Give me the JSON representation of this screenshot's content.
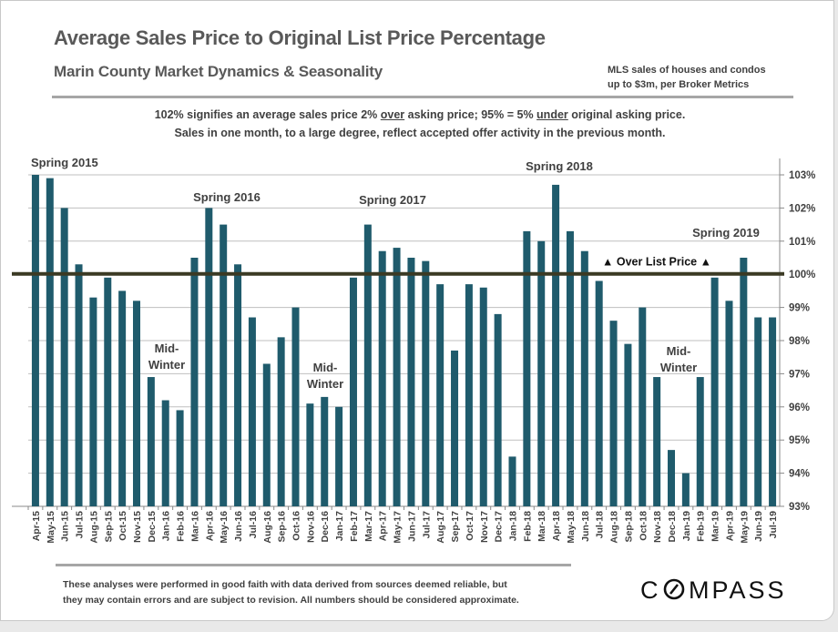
{
  "header": {
    "title": "Average Sales Price to Original List Price Percentage",
    "subtitle": "Marin County Market Dynamics & Seasonality",
    "source_line1": "MLS sales of houses and condos",
    "source_line2": "up to $3m, per Broker Metrics"
  },
  "notes": {
    "line1_a": "102% signifies an average sales price 2% ",
    "line1_over": "over",
    "line1_b": " asking price; 95% = 5% ",
    "line1_under": "under",
    "line1_c": " original asking price.",
    "line2": "Sales in one month, to a large degree, reflect accepted offer activity in the previous month."
  },
  "footer": {
    "disclaimer_line1": "These analyses were performed in good faith with data derived from sources deemed reliable, but",
    "disclaimer_line2": "they may contain errors and are subject to revision. All numbers should be considered  approximate.",
    "logo": "COMPASS"
  },
  "colors": {
    "bar": "#1f5b6c",
    "reference_line": "#3b3a24",
    "grid": "#bfbfbf",
    "text": "#404040"
  },
  "chart_data": {
    "type": "bar",
    "title": "Average Sales Price to Original List Price Percentage",
    "ylim": [
      93,
      103
    ],
    "y_ticks": [
      "93%",
      "94%",
      "95%",
      "96%",
      "97%",
      "98%",
      "99%",
      "100%",
      "101%",
      "102%",
      "103%"
    ],
    "y_axis_position": "right",
    "grid": true,
    "categories": [
      "Apr-15",
      "May-15",
      "Jun-15",
      "Jul-15",
      "Aug-15",
      "Sep-15",
      "Oct-15",
      "Nov-15",
      "Dec-15",
      "Jan-16",
      "Feb-16",
      "Mar-16",
      "Apr-16",
      "May-16",
      "Jun-16",
      "Jul-16",
      "Aug-16",
      "Sep-16",
      "Oct-16",
      "Nov-16",
      "Dec-16",
      "Jan-17",
      "Feb-17",
      "Mar-17",
      "Apr-17",
      "May-17",
      "Jun-17",
      "Jul-17",
      "Aug-17",
      "Sep-17",
      "Oct-17",
      "Nov-17",
      "Dec-17",
      "Jan-18",
      "Feb-18",
      "Mar-18",
      "Apr-18",
      "May-18",
      "Jun-18",
      "Jul-18",
      "Aug-18",
      "Sep-18",
      "Oct-18",
      "Nov-18",
      "Dec-18",
      "Jan-19",
      "Feb-19",
      "Mar-19",
      "Apr-19",
      "May-19",
      "Jun-19",
      "Jul-19"
    ],
    "values": [
      103.0,
      102.9,
      102.0,
      100.3,
      99.3,
      99.9,
      99.5,
      99.2,
      96.9,
      96.2,
      95.9,
      100.5,
      102.0,
      101.5,
      100.3,
      98.7,
      97.3,
      98.1,
      99.0,
      96.1,
      96.3,
      96.0,
      99.9,
      101.5,
      100.7,
      100.8,
      100.5,
      100.4,
      99.7,
      97.7,
      99.7,
      99.6,
      98.8,
      94.5,
      101.3,
      101.0,
      102.7,
      101.3,
      100.7,
      99.8,
      98.6,
      97.9,
      99.0,
      96.9,
      94.7,
      94.0,
      96.9,
      99.9,
      99.2,
      100.5,
      98.7,
      98.7
    ],
    "reference_line": {
      "value": 100,
      "label": "▲ Over List Price ▲"
    },
    "annotations": [
      {
        "text": "Spring 2015"
      },
      {
        "text": "Spring 2016"
      },
      {
        "text": "Spring 2017"
      },
      {
        "text": "Spring 2018"
      },
      {
        "text": "Spring 2019"
      },
      {
        "text": "Mid-|Winter"
      },
      {
        "text": "Mid-|Winter"
      },
      {
        "text": "Mid-|Winter"
      }
    ]
  }
}
